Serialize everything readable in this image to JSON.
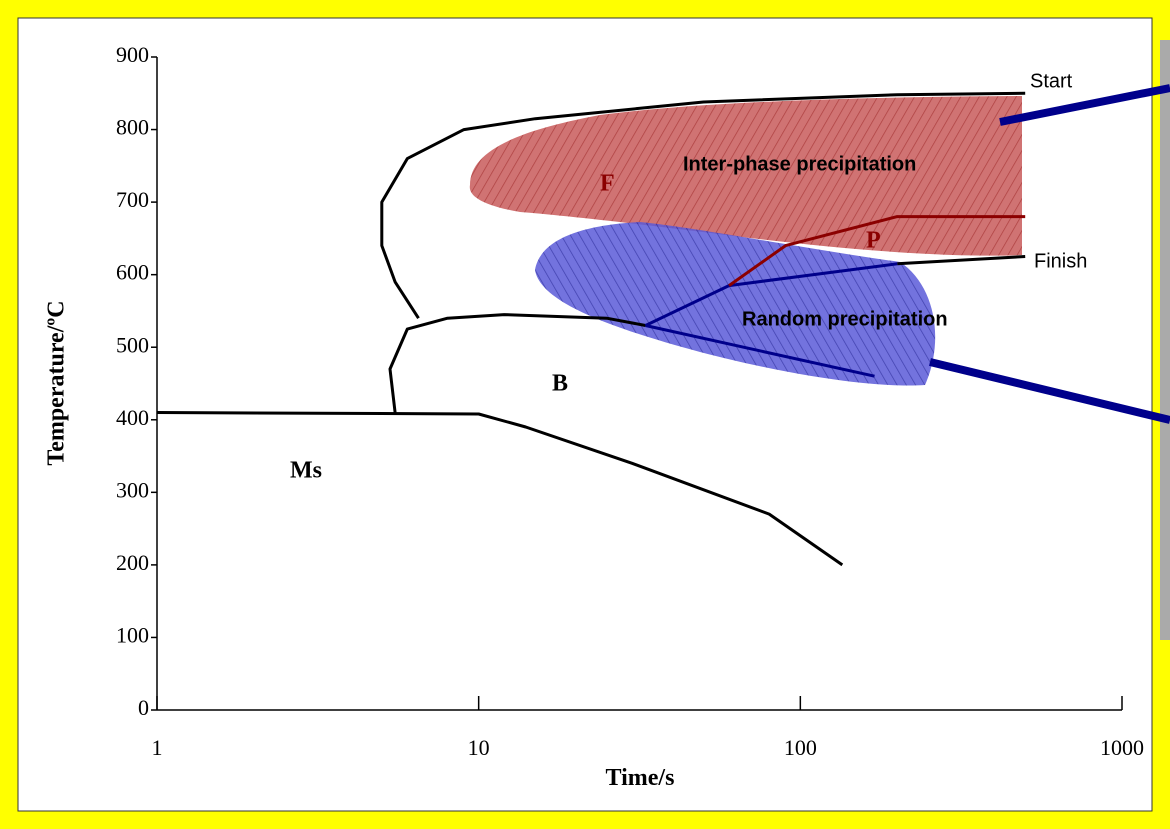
{
  "chart_data": {
    "type": "line",
    "x_label": "Time/s",
    "y_label": "Temperature/ºC",
    "log_x": true,
    "xlim": [
      1,
      1000
    ],
    "xticks": [
      1,
      10,
      100,
      1000
    ],
    "ylim": [
      0,
      900
    ],
    "yticks": [
      0,
      100,
      200,
      300,
      400,
      500,
      600,
      700,
      800,
      900
    ],
    "series": [
      {
        "color": "#000000",
        "x": [
          500,
          200,
          50,
          15,
          9,
          6,
          5,
          5,
          5.5,
          6.5
        ],
        "values": [
          850,
          848,
          838,
          815,
          800,
          760,
          700,
          640,
          590,
          540
        ]
      },
      {
        "color": "#000000",
        "x": [
          5.5,
          5.3,
          6,
          8,
          12,
          25,
          33
        ],
        "values": [
          410,
          470,
          525,
          540,
          545,
          540,
          530
        ]
      },
      {
        "color": "#000000",
        "x": [
          1,
          10,
          14,
          30,
          80,
          135
        ],
        "values": [
          410,
          408,
          390,
          340,
          270,
          200
        ]
      },
      {
        "color": "#000000",
        "x": [
          200,
          500
        ],
        "values": [
          615,
          625
        ]
      },
      {
        "color": "#00008b",
        "x": [
          33,
          60,
          200
        ],
        "values": [
          530,
          585,
          615
        ]
      },
      {
        "color": "#00008b",
        "x": [
          33,
          170
        ],
        "values": [
          530,
          460
        ]
      },
      {
        "color": "#8b0000",
        "x": [
          60,
          90,
          200,
          500
        ],
        "values": [
          585,
          640,
          680,
          680
        ]
      }
    ],
    "annotations": [
      "F",
      "P",
      "B",
      "Ms",
      "Inter-phase precipitation",
      "Random precipitation",
      "Start",
      "Finish"
    ]
  }
}
